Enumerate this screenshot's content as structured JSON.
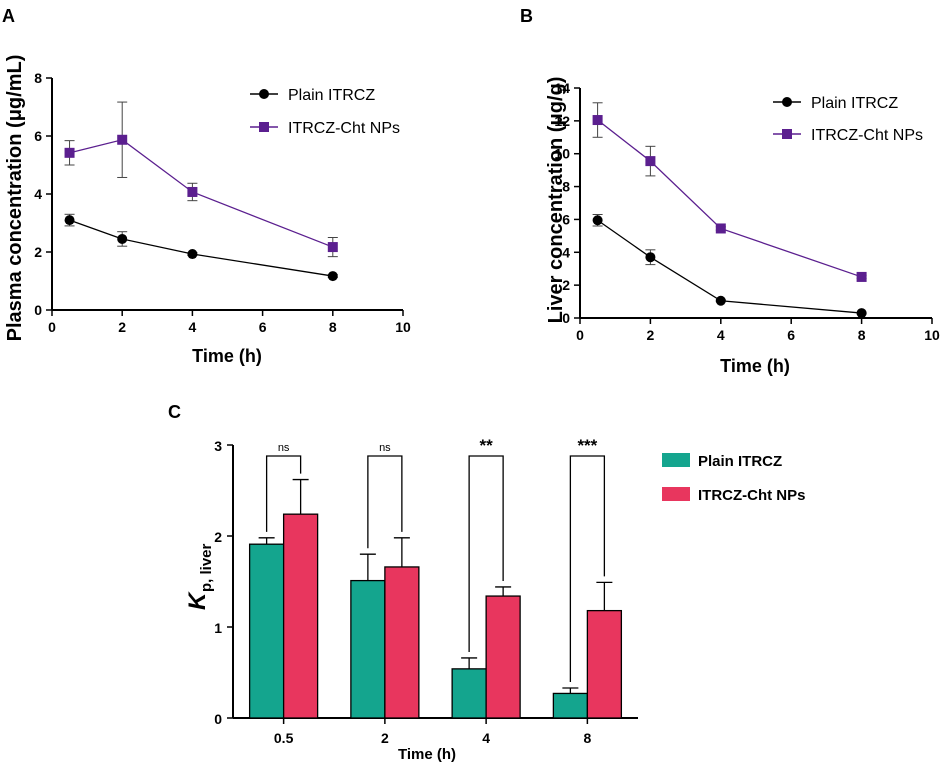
{
  "colors": {
    "plain_line": "#000000",
    "np_line": "#5b1f8f",
    "plain_bar": "#14a58e",
    "np_bar": "#e8365e"
  },
  "chart_data": [
    {
      "panel": "A",
      "type": "line",
      "xlabel": "Time (h)",
      "ylabel": "Plasma concentration (μg/mL)",
      "xlim": [
        0,
        10
      ],
      "ylim": [
        0,
        8
      ],
      "xticks": [
        0,
        2,
        4,
        6,
        8,
        10
      ],
      "yticks": [
        0,
        2,
        4,
        6,
        8
      ],
      "legend_position": "top-right",
      "series": [
        {
          "name": "Plain ITRCZ",
          "marker": "circle",
          "x": [
            0.5,
            2,
            4,
            8
          ],
          "y": [
            3.1,
            2.45,
            1.93,
            1.17
          ],
          "err": [
            0.2,
            0.25,
            0.05,
            0.05
          ]
        },
        {
          "name": "ITRCZ-Cht NPs",
          "marker": "square",
          "x": [
            0.5,
            2,
            4,
            8
          ],
          "y": [
            5.42,
            5.87,
            4.07,
            2.17
          ],
          "err": [
            0.42,
            1.3,
            0.3,
            0.33
          ]
        }
      ]
    },
    {
      "panel": "B",
      "type": "line",
      "xlabel": "Time (h)",
      "ylabel": "Liver concentration (μg/g)",
      "xlim": [
        0,
        10
      ],
      "ylim": [
        0,
        14
      ],
      "xticks": [
        0,
        2,
        4,
        6,
        8,
        10
      ],
      "yticks": [
        0,
        2,
        4,
        6,
        8,
        10,
        12,
        14
      ],
      "legend_position": "top-right",
      "series": [
        {
          "name": "Plain ITRCZ",
          "marker": "circle",
          "x": [
            0.5,
            2,
            4,
            8
          ],
          "y": [
            5.95,
            3.7,
            1.05,
            0.3
          ],
          "err": [
            0.35,
            0.45,
            0.05,
            0.05
          ]
        },
        {
          "name": "ITRCZ-Cht NPs",
          "marker": "square",
          "x": [
            0.5,
            2,
            4,
            8
          ],
          "y": [
            12.05,
            9.55,
            5.45,
            2.5
          ],
          "err": [
            1.05,
            0.9,
            0.1,
            0.1
          ]
        }
      ]
    },
    {
      "panel": "C",
      "type": "bar",
      "xlabel": "Time (h)",
      "ylabel": "K",
      "ylabel_sub": "p, liver",
      "ylim": [
        0,
        3
      ],
      "yticks": [
        0,
        1,
        2,
        3
      ],
      "categories": [
        "0.5",
        "2",
        "4",
        "8"
      ],
      "legend_position": "top-right",
      "series": [
        {
          "name": "Plain ITRCZ",
          "values": [
            1.91,
            1.51,
            0.54,
            0.27
          ],
          "err": [
            0.07,
            0.29,
            0.12,
            0.06
          ]
        },
        {
          "name": "ITRCZ-Cht NPs",
          "values": [
            2.24,
            1.66,
            1.34,
            1.18
          ],
          "err": [
            0.38,
            0.32,
            0.1,
            0.31
          ]
        }
      ],
      "significance": [
        "ns",
        "ns",
        "**",
        "***"
      ]
    }
  ]
}
